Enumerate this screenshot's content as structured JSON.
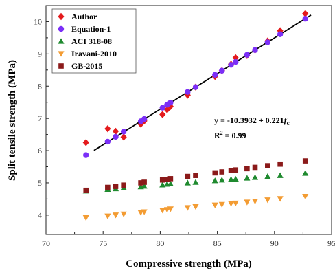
{
  "chart_data": {
    "type": "scatter",
    "xlabel": "Compressive strength (MPa)",
    "ylabel": "Split tensile strength (MPa)",
    "xlim": [
      70,
      95
    ],
    "ylim": [
      3.4,
      10.5
    ],
    "x_ticks": [
      "70",
      "75",
      "80",
      "85",
      "90",
      "95"
    ],
    "y_ticks": [
      "4",
      "5",
      "6",
      "7",
      "8",
      "9",
      "10"
    ],
    "legend_position": "top-left",
    "annotation": {
      "equation_prefix": "y = -10.3932 + 0.221",
      "equation_var": "f",
      "equation_sub": "c",
      "r2_label": "R",
      "r2_sup": "2",
      "r2_value": " = 0.99"
    },
    "fit_line": {
      "intercept": -10.3932,
      "slope": 0.221,
      "x_range": [
        74.2,
        93.2
      ],
      "color": "#000000"
    },
    "series": [
      {
        "name": "Author",
        "marker": "diamond",
        "color": "#e41a1c",
        "points": [
          [
            73.5,
            6.25
          ],
          [
            75.4,
            6.68
          ],
          [
            76.1,
            6.6
          ],
          [
            76.8,
            6.42
          ],
          [
            78.3,
            6.82
          ],
          [
            78.6,
            6.92
          ],
          [
            80.2,
            7.12
          ],
          [
            80.6,
            7.27
          ],
          [
            80.9,
            7.37
          ],
          [
            82.4,
            7.72
          ],
          [
            83.1,
            7.97
          ],
          [
            84.8,
            8.3
          ],
          [
            85.4,
            8.48
          ],
          [
            86.2,
            8.68
          ],
          [
            86.6,
            8.88
          ],
          [
            87.6,
            8.95
          ],
          [
            88.3,
            9.12
          ],
          [
            89.4,
            9.4
          ],
          [
            90.5,
            9.72
          ],
          [
            92.7,
            10.25
          ]
        ]
      },
      {
        "name": "Equation-1",
        "marker": "circle",
        "color": "#7b2ff7",
        "points": [
          [
            73.5,
            5.86
          ],
          [
            75.4,
            6.28
          ],
          [
            76.1,
            6.43
          ],
          [
            76.8,
            6.59
          ],
          [
            78.3,
            6.91
          ],
          [
            78.6,
            6.98
          ],
          [
            80.2,
            7.33
          ],
          [
            80.6,
            7.42
          ],
          [
            80.9,
            7.49
          ],
          [
            82.4,
            7.82
          ],
          [
            83.1,
            7.97
          ],
          [
            84.8,
            8.35
          ],
          [
            85.4,
            8.48
          ],
          [
            86.2,
            8.66
          ],
          [
            86.6,
            8.75
          ],
          [
            87.6,
            8.97
          ],
          [
            88.3,
            9.12
          ],
          [
            89.4,
            9.36
          ],
          [
            90.5,
            9.61
          ],
          [
            92.7,
            10.09
          ]
        ]
      },
      {
        "name": "ACI 318-08",
        "marker": "triangle-up",
        "color": "#1f8a2f",
        "points": [
          [
            73.5,
            4.75
          ],
          [
            75.4,
            4.8
          ],
          [
            76.1,
            4.82
          ],
          [
            76.8,
            4.85
          ],
          [
            78.3,
            4.88
          ],
          [
            78.6,
            4.9
          ],
          [
            80.2,
            4.94
          ],
          [
            80.6,
            4.96
          ],
          [
            80.9,
            4.97
          ],
          [
            82.4,
            5.0
          ],
          [
            83.1,
            5.02
          ],
          [
            84.8,
            5.07
          ],
          [
            85.4,
            5.09
          ],
          [
            86.2,
            5.11
          ],
          [
            86.6,
            5.12
          ],
          [
            87.6,
            5.15
          ],
          [
            88.3,
            5.17
          ],
          [
            89.4,
            5.2
          ],
          [
            90.5,
            5.23
          ],
          [
            92.7,
            5.3
          ]
        ]
      },
      {
        "name": "Iravani-2010",
        "marker": "triangle-down",
        "color": "#f39c33",
        "points": [
          [
            73.5,
            3.92
          ],
          [
            75.4,
            3.97
          ],
          [
            76.1,
            4.0
          ],
          [
            76.8,
            4.03
          ],
          [
            78.3,
            4.08
          ],
          [
            78.6,
            4.1
          ],
          [
            80.2,
            4.15
          ],
          [
            80.6,
            4.17
          ],
          [
            80.9,
            4.19
          ],
          [
            82.4,
            4.23
          ],
          [
            83.1,
            4.26
          ],
          [
            84.8,
            4.31
          ],
          [
            85.4,
            4.33
          ],
          [
            86.2,
            4.36
          ],
          [
            86.6,
            4.37
          ],
          [
            87.6,
            4.4
          ],
          [
            88.3,
            4.43
          ],
          [
            89.4,
            4.47
          ],
          [
            90.5,
            4.51
          ],
          [
            92.7,
            4.58
          ]
        ]
      },
      {
        "name": "GB-2015",
        "marker": "square",
        "color": "#8b1a1a",
        "points": [
          [
            73.5,
            4.77
          ],
          [
            75.4,
            4.86
          ],
          [
            76.1,
            4.89
          ],
          [
            76.8,
            4.93
          ],
          [
            78.3,
            5.0
          ],
          [
            78.6,
            5.02
          ],
          [
            80.2,
            5.09
          ],
          [
            80.6,
            5.11
          ],
          [
            80.9,
            5.13
          ],
          [
            82.4,
            5.2
          ],
          [
            83.1,
            5.23
          ],
          [
            84.8,
            5.31
          ],
          [
            85.4,
            5.34
          ],
          [
            86.2,
            5.38
          ],
          [
            86.6,
            5.4
          ],
          [
            87.6,
            5.44
          ],
          [
            88.3,
            5.48
          ],
          [
            89.4,
            5.53
          ],
          [
            90.5,
            5.58
          ],
          [
            92.7,
            5.68
          ]
        ]
      }
    ]
  }
}
